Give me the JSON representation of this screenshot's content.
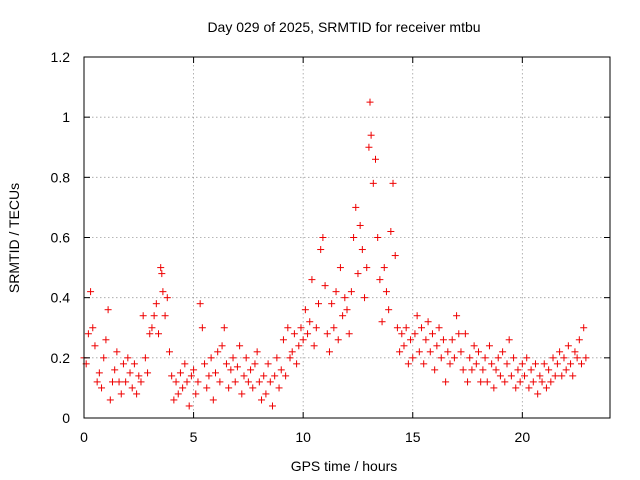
{
  "chart_data": {
    "type": "scatter",
    "title": "Day 029 of 2025, SRMTID for receiver mtbu",
    "xlabel": "GPS time / hours",
    "ylabel": "SRMTID / TECUs",
    "xlim": [
      0,
      24
    ],
    "ylim": [
      0,
      1.2
    ],
    "x_ticks": [
      0,
      5,
      10,
      15,
      20
    ],
    "y_ticks": [
      0,
      0.2,
      0.4,
      0.6,
      0.8,
      1,
      1.2
    ],
    "x_tick_labels": [
      "0",
      "5",
      "10",
      "15",
      "20"
    ],
    "y_tick_labels": [
      "0",
      "0.2",
      "0.4",
      "0.6",
      "0.8",
      "1",
      "1.2"
    ],
    "grid": true,
    "marker": "plus",
    "series": [
      {
        "name": "SRMTID",
        "color": "#ee0000",
        "x_range": [
          0,
          22.9
        ],
        "points": [
          [
            0.0,
            0.2
          ],
          [
            0.1,
            0.18
          ],
          [
            0.2,
            0.28
          ],
          [
            0.3,
            0.42
          ],
          [
            0.4,
            0.3
          ],
          [
            0.5,
            0.24
          ],
          [
            0.6,
            0.12
          ],
          [
            0.7,
            0.15
          ],
          [
            0.8,
            0.1
          ],
          [
            0.9,
            0.2
          ],
          [
            1.0,
            0.26
          ],
          [
            1.1,
            0.36
          ],
          [
            1.2,
            0.06
          ],
          [
            1.3,
            0.12
          ],
          [
            1.4,
            0.16
          ],
          [
            1.5,
            0.22
          ],
          [
            1.6,
            0.12
          ],
          [
            1.7,
            0.08
          ],
          [
            1.8,
            0.18
          ],
          [
            1.9,
            0.12
          ],
          [
            2.0,
            0.2
          ],
          [
            2.1,
            0.15
          ],
          [
            2.2,
            0.1
          ],
          [
            2.3,
            0.18
          ],
          [
            2.4,
            0.08
          ],
          [
            2.5,
            0.14
          ],
          [
            2.6,
            0.12
          ],
          [
            2.7,
            0.34
          ],
          [
            2.8,
            0.2
          ],
          [
            2.9,
            0.15
          ],
          [
            3.0,
            0.28
          ],
          [
            3.1,
            0.3
          ],
          [
            3.2,
            0.34
          ],
          [
            3.3,
            0.38
          ],
          [
            3.4,
            0.28
          ],
          [
            3.5,
            0.5
          ],
          [
            3.55,
            0.48
          ],
          [
            3.6,
            0.42
          ],
          [
            3.7,
            0.34
          ],
          [
            3.8,
            0.4
          ],
          [
            3.9,
            0.22
          ],
          [
            4.0,
            0.14
          ],
          [
            4.1,
            0.06
          ],
          [
            4.2,
            0.12
          ],
          [
            4.3,
            0.08
          ],
          [
            4.4,
            0.15
          ],
          [
            4.5,
            0.1
          ],
          [
            4.6,
            0.18
          ],
          [
            4.7,
            0.12
          ],
          [
            4.8,
            0.04
          ],
          [
            4.9,
            0.14
          ],
          [
            5.0,
            0.16
          ],
          [
            5.1,
            0.08
          ],
          [
            5.2,
            0.12
          ],
          [
            5.3,
            0.38
          ],
          [
            5.4,
            0.3
          ],
          [
            5.5,
            0.18
          ],
          [
            5.6,
            0.1
          ],
          [
            5.7,
            0.14
          ],
          [
            5.8,
            0.2
          ],
          [
            5.9,
            0.06
          ],
          [
            6.0,
            0.15
          ],
          [
            6.1,
            0.22
          ],
          [
            6.2,
            0.12
          ],
          [
            6.3,
            0.24
          ],
          [
            6.4,
            0.3
          ],
          [
            6.5,
            0.18
          ],
          [
            6.6,
            0.1
          ],
          [
            6.7,
            0.16
          ],
          [
            6.8,
            0.2
          ],
          [
            6.9,
            0.12
          ],
          [
            7.0,
            0.17
          ],
          [
            7.1,
            0.24
          ],
          [
            7.2,
            0.08
          ],
          [
            7.3,
            0.14
          ],
          [
            7.4,
            0.2
          ],
          [
            7.5,
            0.12
          ],
          [
            7.6,
            0.16
          ],
          [
            7.7,
            0.1
          ],
          [
            7.8,
            0.18
          ],
          [
            7.9,
            0.22
          ],
          [
            8.0,
            0.12
          ],
          [
            8.1,
            0.06
          ],
          [
            8.2,
            0.14
          ],
          [
            8.3,
            0.08
          ],
          [
            8.4,
            0.18
          ],
          [
            8.5,
            0.12
          ],
          [
            8.6,
            0.04
          ],
          [
            8.7,
            0.14
          ],
          [
            8.8,
            0.2
          ],
          [
            8.9,
            0.1
          ],
          [
            9.0,
            0.16
          ],
          [
            9.1,
            0.26
          ],
          [
            9.2,
            0.14
          ],
          [
            9.3,
            0.3
          ],
          [
            9.4,
            0.2
          ],
          [
            9.5,
            0.22
          ],
          [
            9.6,
            0.28
          ],
          [
            9.7,
            0.18
          ],
          [
            9.8,
            0.24
          ],
          [
            9.9,
            0.3
          ],
          [
            10.0,
            0.26
          ],
          [
            10.1,
            0.36
          ],
          [
            10.2,
            0.28
          ],
          [
            10.3,
            0.32
          ],
          [
            10.4,
            0.46
          ],
          [
            10.5,
            0.24
          ],
          [
            10.6,
            0.3
          ],
          [
            10.7,
            0.38
          ],
          [
            10.8,
            0.56
          ],
          [
            10.9,
            0.6
          ],
          [
            11.0,
            0.44
          ],
          [
            11.1,
            0.28
          ],
          [
            11.2,
            0.22
          ],
          [
            11.3,
            0.38
          ],
          [
            11.4,
            0.3
          ],
          [
            11.5,
            0.42
          ],
          [
            11.6,
            0.26
          ],
          [
            11.7,
            0.5
          ],
          [
            11.8,
            0.34
          ],
          [
            11.9,
            0.4
          ],
          [
            12.0,
            0.36
          ],
          [
            12.1,
            0.28
          ],
          [
            12.2,
            0.42
          ],
          [
            12.3,
            0.6
          ],
          [
            12.4,
            0.7
          ],
          [
            12.5,
            0.48
          ],
          [
            12.6,
            0.64
          ],
          [
            12.7,
            0.56
          ],
          [
            12.8,
            0.4
          ],
          [
            12.9,
            0.5
          ],
          [
            13.0,
            0.9
          ],
          [
            13.05,
            1.05
          ],
          [
            13.1,
            0.94
          ],
          [
            13.2,
            0.78
          ],
          [
            13.3,
            0.86
          ],
          [
            13.4,
            0.6
          ],
          [
            13.5,
            0.46
          ],
          [
            13.6,
            0.32
          ],
          [
            13.7,
            0.5
          ],
          [
            13.8,
            0.42
          ],
          [
            13.9,
            0.36
          ],
          [
            14.0,
            0.62
          ],
          [
            14.1,
            0.78
          ],
          [
            14.2,
            0.54
          ],
          [
            14.3,
            0.3
          ],
          [
            14.4,
            0.22
          ],
          [
            14.5,
            0.28
          ],
          [
            14.6,
            0.24
          ],
          [
            14.7,
            0.3
          ],
          [
            14.8,
            0.18
          ],
          [
            14.9,
            0.26
          ],
          [
            15.0,
            0.2
          ],
          [
            15.1,
            0.28
          ],
          [
            15.2,
            0.34
          ],
          [
            15.3,
            0.22
          ],
          [
            15.4,
            0.3
          ],
          [
            15.5,
            0.18
          ],
          [
            15.6,
            0.26
          ],
          [
            15.7,
            0.32
          ],
          [
            15.8,
            0.22
          ],
          [
            15.9,
            0.28
          ],
          [
            16.0,
            0.16
          ],
          [
            16.1,
            0.24
          ],
          [
            16.2,
            0.3
          ],
          [
            16.3,
            0.2
          ],
          [
            16.4,
            0.26
          ],
          [
            16.5,
            0.12
          ],
          [
            16.6,
            0.22
          ],
          [
            16.7,
            0.18
          ],
          [
            16.8,
            0.26
          ],
          [
            16.9,
            0.2
          ],
          [
            17.0,
            0.34
          ],
          [
            17.1,
            0.28
          ],
          [
            17.2,
            0.22
          ],
          [
            17.3,
            0.16
          ],
          [
            17.4,
            0.28
          ],
          [
            17.5,
            0.12
          ],
          [
            17.6,
            0.2
          ],
          [
            17.7,
            0.16
          ],
          [
            17.8,
            0.24
          ],
          [
            17.9,
            0.18
          ],
          [
            18.0,
            0.22
          ],
          [
            18.1,
            0.12
          ],
          [
            18.2,
            0.16
          ],
          [
            18.3,
            0.2
          ],
          [
            18.4,
            0.12
          ],
          [
            18.5,
            0.24
          ],
          [
            18.6,
            0.18
          ],
          [
            18.7,
            0.1
          ],
          [
            18.8,
            0.16
          ],
          [
            18.9,
            0.2
          ],
          [
            19.0,
            0.14
          ],
          [
            19.1,
            0.22
          ],
          [
            19.2,
            0.12
          ],
          [
            19.3,
            0.18
          ],
          [
            19.4,
            0.26
          ],
          [
            19.5,
            0.14
          ],
          [
            19.6,
            0.2
          ],
          [
            19.7,
            0.1
          ],
          [
            19.8,
            0.16
          ],
          [
            19.9,
            0.12
          ],
          [
            20.0,
            0.18
          ],
          [
            20.1,
            0.14
          ],
          [
            20.2,
            0.2
          ],
          [
            20.3,
            0.1
          ],
          [
            20.4,
            0.16
          ],
          [
            20.5,
            0.12
          ],
          [
            20.6,
            0.18
          ],
          [
            20.7,
            0.08
          ],
          [
            20.8,
            0.14
          ],
          [
            20.9,
            0.12
          ],
          [
            21.0,
            0.18
          ],
          [
            21.1,
            0.1
          ],
          [
            21.2,
            0.16
          ],
          [
            21.3,
            0.12
          ],
          [
            21.4,
            0.2
          ],
          [
            21.5,
            0.14
          ],
          [
            21.6,
            0.18
          ],
          [
            21.7,
            0.22
          ],
          [
            21.8,
            0.14
          ],
          [
            21.9,
            0.2
          ],
          [
            22.0,
            0.16
          ],
          [
            22.1,
            0.24
          ],
          [
            22.2,
            0.18
          ],
          [
            22.3,
            0.14
          ],
          [
            22.4,
            0.22
          ],
          [
            22.5,
            0.2
          ],
          [
            22.6,
            0.26
          ],
          [
            22.7,
            0.18
          ],
          [
            22.8,
            0.3
          ],
          [
            22.9,
            0.2
          ]
        ]
      }
    ]
  }
}
